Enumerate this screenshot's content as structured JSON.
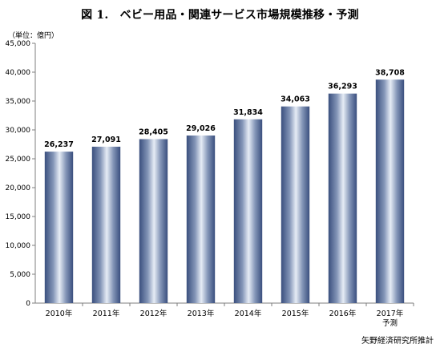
{
  "title": "図 1.　ベビー用品・関連サービス市場規模推移・予測",
  "unit": "（単位：億円）",
  "source": "矢野経済研究所推計",
  "colors": {
    "bar_dark": "#3a4f7e",
    "bar_light": "#e6ecf5",
    "axis": "#7f7f7f"
  },
  "chart_data": {
    "type": "bar",
    "categories": [
      "2010年",
      "2011年",
      "2012年",
      "2013年",
      "2014年",
      "2015年",
      "2016年",
      "2017年\n予測"
    ],
    "values": [
      26237,
      27091,
      28405,
      29026,
      31834,
      34063,
      36293,
      38708
    ],
    "value_labels": [
      "26,237",
      "27,091",
      "28,405",
      "29,026",
      "31,834",
      "34,063",
      "36,293",
      "38,708"
    ],
    "y_ticks": [
      "0",
      "5,000",
      "10,000",
      "15,000",
      "20,000",
      "25,000",
      "30,000",
      "35,000",
      "40,000",
      "45,000"
    ],
    "ylim": [
      0,
      45000
    ],
    "grid": false,
    "legend": "none"
  }
}
